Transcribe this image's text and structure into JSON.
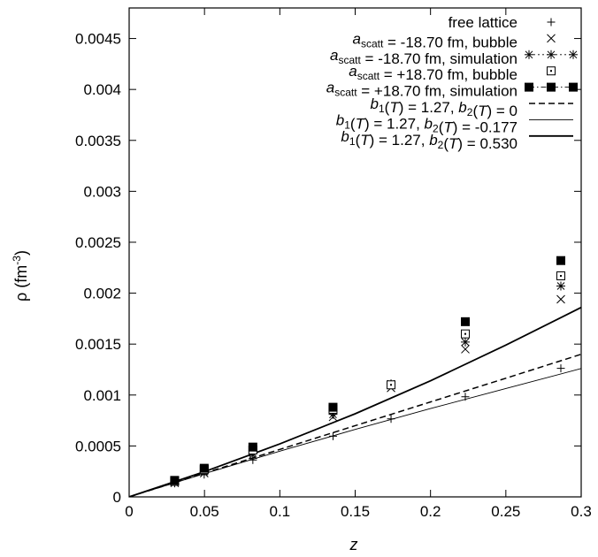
{
  "chart_data": {
    "type": "scatter",
    "xlabel": "z",
    "ylabel_main": "ρ (fm",
    "ylabel_sup": "-3",
    "ylabel_close": ")",
    "xlim": [
      0,
      0.3
    ],
    "ylim": [
      0,
      0.0048
    ],
    "x_ticks": [
      {
        "value": 0,
        "label": "0"
      },
      {
        "value": 0.05,
        "label": "0.05"
      },
      {
        "value": 0.1,
        "label": "0.1"
      },
      {
        "value": 0.15,
        "label": "0.15"
      },
      {
        "value": 0.2,
        "label": "0.2"
      },
      {
        "value": 0.25,
        "label": "0.25"
      },
      {
        "value": 0.3,
        "label": "0.3"
      }
    ],
    "y_ticks": [
      {
        "value": 0,
        "label": "0"
      },
      {
        "value": 0.0005,
        "label": "0.0005"
      },
      {
        "value": 0.001,
        "label": "0.001"
      },
      {
        "value": 0.0015,
        "label": "0.0015"
      },
      {
        "value": 0.002,
        "label": "0.002"
      },
      {
        "value": 0.0025,
        "label": "0.0025"
      },
      {
        "value": 0.003,
        "label": "0.003"
      },
      {
        "value": 0.0035,
        "label": "0.0035"
      },
      {
        "value": 0.004,
        "label": "0.004"
      },
      {
        "value": 0.0045,
        "label": "0.0045"
      }
    ],
    "grid": false,
    "legend_placement": "top-right",
    "series": [
      {
        "name_parts": [
          {
            "t": "free lattice"
          }
        ],
        "kind": "points",
        "marker": "plus",
        "x": [
          0.0302,
          0.0498,
          0.0821,
          0.1353,
          0.1738,
          0.2231,
          0.2865
        ],
        "y": [
          0.000133,
          0.000219,
          0.000362,
          0.000596,
          0.000766,
          0.000983,
          0.001262
        ]
      },
      {
        "name_parts": [
          {
            "t": "a",
            "i": true
          },
          {
            "t": "scatt",
            "sub": true
          },
          {
            "t": " = -18.70 fm, bubble"
          }
        ],
        "kind": "points",
        "marker": "cross",
        "x": [
          0.0302,
          0.0498,
          0.0821,
          0.1353,
          0.1738,
          0.2231,
          0.2865
        ],
        "y": [
          0.000138,
          0.000233,
          0.000412,
          0.000785,
          0.00107,
          0.00145,
          0.00194
        ]
      },
      {
        "name_parts": [
          {
            "t": "a",
            "i": true
          },
          {
            "t": "scatt",
            "sub": true
          },
          {
            "t": " = -18.70 fm, simulation"
          }
        ],
        "kind": "points",
        "marker": "star",
        "line": "dotted",
        "x": [
          0.0302,
          0.0498,
          0.0821,
          0.1353,
          0.1738,
          0.2231,
          0.2865
        ],
        "y": [
          0.00015,
          0.00025,
          0.00043,
          0.00081,
          0.00111,
          0.00152,
          0.00207
        ]
      },
      {
        "name_parts": [
          {
            "t": "a",
            "i": true
          },
          {
            "t": "scatt",
            "sub": true
          },
          {
            "t": " = +18.70 fm, bubble"
          }
        ],
        "kind": "points",
        "marker": "dotsquare",
        "x": [
          0.0302,
          0.0498,
          0.0821,
          0.1353,
          0.1738,
          0.2231,
          0.2865
        ],
        "y": [
          0.000152,
          0.000268,
          0.00046,
          0.00086,
          0.0011,
          0.0016,
          0.00217
        ]
      },
      {
        "name_parts": [
          {
            "t": "a",
            "i": true
          },
          {
            "t": "scatt",
            "sub": true
          },
          {
            "t": " = +18.70 fm, simulation"
          }
        ],
        "kind": "points",
        "marker": "filledsquare",
        "line": "dashdot",
        "x": [
          0.0302,
          0.0498,
          0.0821,
          0.1353,
          0.2231,
          0.2865
        ],
        "y": [
          0.000162,
          0.000281,
          0.000489,
          0.00088,
          0.00172,
          0.00232
        ]
      },
      {
        "name_parts": [
          {
            "t": "b",
            "i": true
          },
          {
            "t": "1",
            "sub": true
          },
          {
            "t": "("
          },
          {
            "t": "T",
            "i": true
          },
          {
            "t": ") = 1.27, "
          },
          {
            "t": "b",
            "i": true
          },
          {
            "t": "2",
            "sub": true
          },
          {
            "t": "("
          },
          {
            "t": "T",
            "i": true
          },
          {
            "t": ") = 0"
          }
        ],
        "kind": "line",
        "line": "dashed",
        "width": 1.5,
        "x": [
          0,
          0.05,
          0.1,
          0.15,
          0.2,
          0.25,
          0.3
        ],
        "y": [
          0,
          0.000233,
          0.000466,
          0.000699,
          0.000932,
          0.001165,
          0.0014
        ]
      },
      {
        "name_parts": [
          {
            "t": "b",
            "i": true
          },
          {
            "t": "1",
            "sub": true
          },
          {
            "t": "("
          },
          {
            "t": "T",
            "i": true
          },
          {
            "t": ") = 1.27, "
          },
          {
            "t": "b",
            "i": true
          },
          {
            "t": "2",
            "sub": true
          },
          {
            "t": "("
          },
          {
            "t": "T",
            "i": true
          },
          {
            "t": ") = -0.177"
          }
        ],
        "kind": "line",
        "line": "solid",
        "width": 0.9,
        "x": [
          0,
          0.05,
          0.1,
          0.15,
          0.2,
          0.25,
          0.3
        ],
        "y": [
          0,
          0.000228,
          0.000449,
          0.000662,
          0.000867,
          0.001064,
          0.00126
        ]
      },
      {
        "name_parts": [
          {
            "t": "b",
            "i": true
          },
          {
            "t": "1",
            "sub": true
          },
          {
            "t": "("
          },
          {
            "t": "T",
            "i": true
          },
          {
            "t": ") = 1.27, "
          },
          {
            "t": "b",
            "i": true
          },
          {
            "t": "2",
            "sub": true
          },
          {
            "t": "("
          },
          {
            "t": "T",
            "i": true
          },
          {
            "t": ") = 0.530"
          }
        ],
        "kind": "line",
        "line": "solid",
        "width": 1.8,
        "x": [
          0,
          0.05,
          0.1,
          0.15,
          0.2,
          0.25,
          0.3
        ],
        "y": [
          0,
          0.000248,
          0.00052,
          0.000816,
          0.00114,
          0.00149,
          0.00186
        ]
      }
    ]
  }
}
